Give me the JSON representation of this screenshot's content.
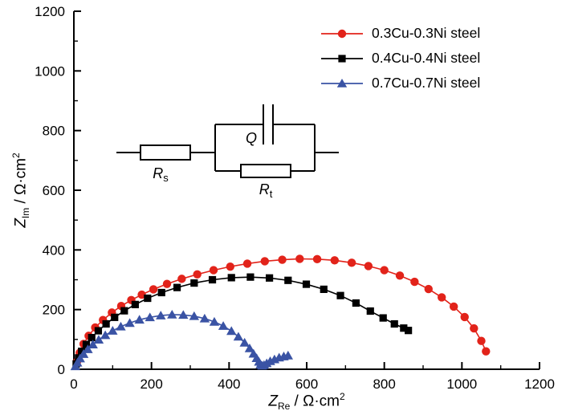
{
  "figure": {
    "background": "#ffffff",
    "axis_color": "#000000"
  },
  "axes": {
    "xlabel": {
      "symbol": "Z",
      "subscript": "Re",
      "unit": " / Ω·cm",
      "exponent": "2"
    },
    "ylabel": {
      "symbol": "Z",
      "subscript": "Im",
      "unit": " / Ω·cm",
      "exponent": "2"
    }
  },
  "chart_data": {
    "type": "scatter",
    "title": "",
    "xlabel": "Z_Re / Ω·cm^2",
    "ylabel": "Z_Im / Ω·cm^2",
    "xlim": [
      0,
      1200
    ],
    "ylim": [
      0,
      1200
    ],
    "xticks": [
      0,
      200,
      400,
      600,
      800,
      1000,
      1200
    ],
    "yticks": [
      0,
      200,
      400,
      600,
      800,
      1000,
      1200
    ],
    "minor_tick_step": 100,
    "grid": false,
    "legend_position": "top-right-inside",
    "series": [
      {
        "name": "0.3Cu-0.3Ni steel",
        "color": "#e2231a",
        "marker": "circle",
        "points": [
          [
            8,
            25
          ],
          [
            15,
            55
          ],
          [
            25,
            85
          ],
          [
            38,
            112
          ],
          [
            55,
            140
          ],
          [
            75,
            165
          ],
          [
            98,
            190
          ],
          [
            122,
            212
          ],
          [
            148,
            232
          ],
          [
            175,
            250
          ],
          [
            205,
            268
          ],
          [
            240,
            286
          ],
          [
            278,
            303
          ],
          [
            318,
            318
          ],
          [
            360,
            332
          ],
          [
            403,
            344
          ],
          [
            447,
            354
          ],
          [
            492,
            362
          ],
          [
            537,
            367
          ],
          [
            582,
            370
          ],
          [
            627,
            369
          ],
          [
            672,
            365
          ],
          [
            716,
            357
          ],
          [
            759,
            346
          ],
          [
            800,
            332
          ],
          [
            840,
            314
          ],
          [
            878,
            293
          ],
          [
            914,
            269
          ],
          [
            948,
            241
          ],
          [
            979,
            210
          ],
          [
            1007,
            175
          ],
          [
            1031,
            137
          ],
          [
            1050,
            95
          ],
          [
            1062,
            60
          ]
        ]
      },
      {
        "name": "0.4Cu-0.4Ni steel",
        "color": "#000000",
        "marker": "square",
        "points": [
          [
            6,
            18
          ],
          [
            12,
            38
          ],
          [
            20,
            60
          ],
          [
            32,
            83
          ],
          [
            46,
            106
          ],
          [
            63,
            129
          ],
          [
            83,
            152
          ],
          [
            105,
            174
          ],
          [
            130,
            196
          ],
          [
            158,
            217
          ],
          [
            190,
            238
          ],
          [
            226,
            257
          ],
          [
            266,
            274
          ],
          [
            310,
            289
          ],
          [
            357,
            300
          ],
          [
            406,
            307
          ],
          [
            455,
            309
          ],
          [
            504,
            306
          ],
          [
            552,
            298
          ],
          [
            599,
            285
          ],
          [
            644,
            268
          ],
          [
            687,
            247
          ],
          [
            727,
            222
          ],
          [
            764,
            195
          ],
          [
            797,
            172
          ],
          [
            826,
            152
          ],
          [
            850,
            138
          ],
          [
            862,
            130
          ]
        ]
      },
      {
        "name": "0.7Cu-0.7Ni steel",
        "color": "#3a53a4",
        "marker": "triangle",
        "points": [
          [
            4,
            10
          ],
          [
            9,
            22
          ],
          [
            16,
            36
          ],
          [
            25,
            51
          ],
          [
            36,
            67
          ],
          [
            49,
            83
          ],
          [
            64,
            99
          ],
          [
            81,
            114
          ],
          [
            100,
            129
          ],
          [
            121,
            143
          ],
          [
            144,
            155
          ],
          [
            169,
            166
          ],
          [
            196,
            174
          ],
          [
            224,
            180
          ],
          [
            253,
            183
          ],
          [
            282,
            182
          ],
          [
            310,
            178
          ],
          [
            337,
            170
          ],
          [
            362,
            159
          ],
          [
            385,
            145
          ],
          [
            406,
            128
          ],
          [
            424,
            109
          ],
          [
            440,
            89
          ],
          [
            453,
            70
          ],
          [
            463,
            52
          ],
          [
            471,
            37
          ],
          [
            477,
            25
          ],
          [
            481,
            16
          ],
          [
            485,
            12
          ],
          [
            490,
            14
          ],
          [
            497,
            20
          ],
          [
            506,
            27
          ],
          [
            517,
            33
          ],
          [
            529,
            39
          ],
          [
            541,
            43
          ],
          [
            552,
            46
          ]
        ]
      }
    ]
  },
  "circuit": {
    "description": "Rs in series with (Q parallel Rt)",
    "labels": {
      "rs_symbol": "R",
      "rs_subscript": "s",
      "q_symbol": "Q",
      "rt_symbol": "R",
      "rt_subscript": "t"
    }
  }
}
